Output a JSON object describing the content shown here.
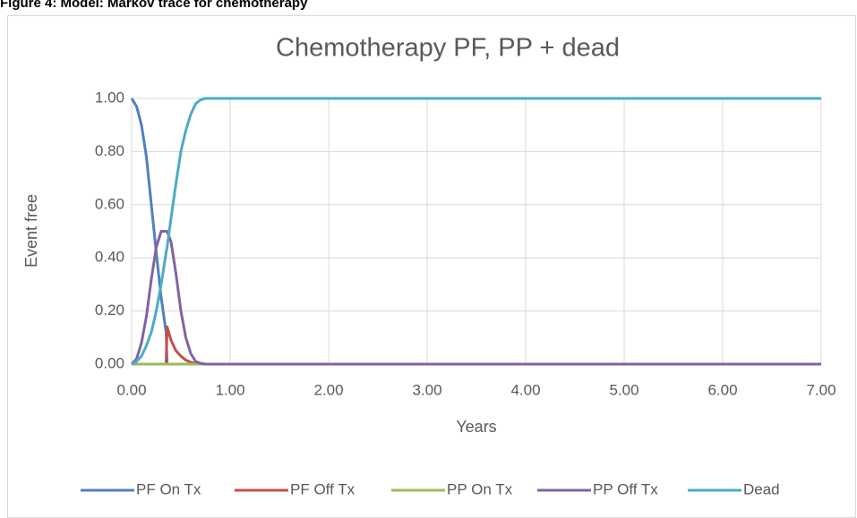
{
  "caption": "Figure 4: Model: Markov trace for chemotherapy",
  "chart_data": {
    "type": "line",
    "title": "Chemotherapy PF, PP + dead",
    "x_label": "Years",
    "y_label": "Event free",
    "x": [
      0,
      0.05,
      0.1,
      0.15,
      0.2,
      0.25,
      0.3,
      0.35,
      0.36,
      0.4,
      0.45,
      0.5,
      0.55,
      0.6,
      0.65,
      0.7,
      0.75,
      0.8,
      1,
      2,
      3,
      4,
      5,
      6,
      7
    ],
    "series": [
      {
        "name": "PF On Tx",
        "color": "#4f81bd",
        "values": [
          1,
          0.97,
          0.9,
          0.78,
          0.6,
          0.42,
          0.25,
          0.12,
          0,
          0,
          0,
          0,
          0,
          0,
          0,
          0,
          0,
          0,
          0,
          0,
          0,
          0,
          0,
          0,
          0
        ]
      },
      {
        "name": "PF Off Tx",
        "color": "#c0504d",
        "values": [
          0,
          0,
          0,
          0,
          0,
          0,
          0,
          0,
          0.14,
          0.09,
          0.05,
          0.03,
          0.015,
          0.007,
          0.003,
          0.001,
          0,
          0,
          0,
          0,
          0,
          0,
          0,
          0,
          0
        ]
      },
      {
        "name": "PP On Tx",
        "color": "#9bbb59",
        "values": [
          0,
          0,
          0,
          0,
          0,
          0,
          0,
          0,
          0,
          0,
          0,
          0,
          0,
          0,
          0,
          0,
          0,
          0,
          0,
          0,
          0,
          0,
          0,
          0,
          0
        ]
      },
      {
        "name": "PP Off Tx",
        "color": "#8064a2",
        "values": [
          0,
          0.02,
          0.08,
          0.18,
          0.32,
          0.44,
          0.5,
          0.5,
          0.5,
          0.46,
          0.34,
          0.2,
          0.1,
          0.04,
          0.01,
          0.003,
          0,
          0,
          0,
          0,
          0,
          0,
          0,
          0,
          0
        ]
      },
      {
        "name": "Dead",
        "color": "#4bacc6",
        "values": [
          0,
          0.01,
          0.03,
          0.07,
          0.12,
          0.2,
          0.3,
          0.42,
          0.44,
          0.55,
          0.68,
          0.8,
          0.88,
          0.94,
          0.98,
          0.995,
          1,
          1,
          1,
          1,
          1,
          1,
          1,
          1,
          1
        ]
      }
    ],
    "xlim": [
      0,
      7
    ],
    "xticks": [
      {
        "value": 0,
        "label": "0.00"
      },
      {
        "value": 1,
        "label": "1.00"
      },
      {
        "value": 2,
        "label": "2.00"
      },
      {
        "value": 3,
        "label": "3.00"
      },
      {
        "value": 4,
        "label": "4.00"
      },
      {
        "value": 5,
        "label": "5.00"
      },
      {
        "value": 6,
        "label": "6.00"
      },
      {
        "value": 7,
        "label": "7.00"
      }
    ],
    "ylim": [
      0,
      1
    ],
    "yticks": [
      {
        "value": 0,
        "label": "0.00"
      },
      {
        "value": 0.2,
        "label": "0.20"
      },
      {
        "value": 0.4,
        "label": "0.40"
      },
      {
        "value": 0.6,
        "label": "0.60"
      },
      {
        "value": 0.8,
        "label": "0.80"
      },
      {
        "value": 1,
        "label": "1.00"
      }
    ],
    "grid": true,
    "legend": "bottom"
  }
}
